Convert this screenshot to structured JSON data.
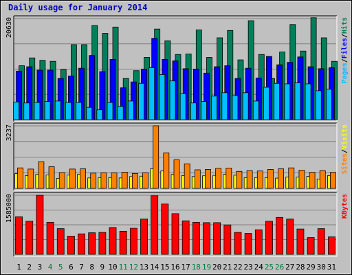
{
  "chart_data": {
    "type": "bar",
    "title": "Daily usage for January 2014",
    "categories": [
      "1",
      "2",
      "3",
      "4",
      "5",
      "6",
      "7",
      "8",
      "9",
      "10",
      "11",
      "12",
      "13",
      "14",
      "15",
      "16",
      "17",
      "18",
      "19",
      "20",
      "21",
      "22",
      "23",
      "24",
      "25",
      "26",
      "27",
      "28",
      "29",
      "30",
      "31"
    ],
    "weekend_days": [
      "4",
      "5",
      "11",
      "12",
      "18",
      "19",
      "25",
      "26"
    ],
    "colors": {
      "hits": "#00805a",
      "files": "#0000ff",
      "pages": "#00c0ff",
      "visits": "#ffff00",
      "sites": "#ff8000",
      "kbytes": "#ff0000",
      "weekday_label": "#000000",
      "weekend_label": "#008040",
      "title": "#0000c0",
      "plot_bg": "#c0c0c0"
    },
    "panels": [
      {
        "name": "usage",
        "ymax": 20630,
        "ymax_label": "20630",
        "legend": [
          {
            "label": "Pages",
            "color": "#00c0ff"
          },
          {
            "label": "Files",
            "color": "#0000ff"
          },
          {
            "label": "Hits",
            "color": "#00805a"
          }
        ],
        "series": [
          {
            "name": "Hits",
            "color": "#00805a",
            "values": [
              11000,
              12600,
              12100,
              11900,
              10200,
              15300,
              15300,
              19200,
              17600,
              18900,
              8400,
              10000,
              12700,
              18500,
              16100,
              13300,
              13400,
              18300,
              12700,
              16700,
              18200,
              12200,
              20200,
              13300,
              8400,
              13800,
              19400,
              14000,
              20800,
              16700,
              11900
            ]
          },
          {
            "name": "Files",
            "color": "#0000ff",
            "values": [
              9900,
              10800,
              10100,
              10100,
              8400,
              8900,
              10500,
              13100,
              9800,
              12300,
              6500,
              7700,
              10300,
              16600,
              12300,
              12000,
              10400,
              10300,
              9500,
              10800,
              11000,
              8400,
              10500,
              8500,
              12900,
              11200,
              11700,
              12800,
              10800,
              10400,
              10600
            ]
          },
          {
            "name": "Pages",
            "color": "#00c0ff",
            "values": [
              3600,
              3400,
              3500,
              3700,
              3800,
              3500,
              3500,
              2500,
              2000,
              3500,
              2700,
              3800,
              7400,
              10600,
              9200,
              7900,
              5300,
              3400,
              3700,
              4800,
              5500,
              4900,
              5500,
              3800,
              6600,
              7400,
              7300,
              7500,
              7300,
              5900,
              6200
            ]
          }
        ]
      },
      {
        "name": "visits",
        "ymax": 3237,
        "ymax_label": "3237",
        "legend": [
          {
            "label": "Sites",
            "color": "#ff8000"
          },
          {
            "label": "Visits",
            "color": "#ffff00"
          }
        ],
        "series": [
          {
            "name": "Visits",
            "color": "#ffff00",
            "values": [
              760,
              660,
              720,
              700,
              520,
              690,
              720,
              540,
              560,
              560,
              540,
              610,
              630,
              1010,
              900,
              720,
              660,
              610,
              650,
              670,
              720,
              680,
              560,
              560,
              560,
              530,
              590,
              590,
              620,
              480,
              660
            ]
          },
          {
            "name": "Sites",
            "color": "#ff8000",
            "values": [
              1060,
              1000,
              1380,
              1120,
              820,
              1000,
              1010,
              790,
              810,
              810,
              840,
              770,
              810,
              3237,
              1840,
              1480,
              1270,
              960,
              980,
              1040,
              1050,
              880,
              920,
              900,
              980,
              1010,
              1060,
              940,
              830,
              920,
              830
            ]
          }
        ]
      },
      {
        "name": "kbytes",
        "ymax": 1585000,
        "ymax_label": "1585000",
        "legend": [
          {
            "label": "KBytes",
            "color": "#ff0000"
          }
        ],
        "series": [
          {
            "name": "KBytes",
            "color": "#ff0000",
            "values": [
              1010000,
              890000,
              1585000,
              860000,
              690000,
              490000,
              550000,
              580000,
              590000,
              720000,
              620000,
              700000,
              950000,
              1570000,
              1350000,
              1090000,
              900000,
              860000,
              850000,
              850000,
              790000,
              590000,
              560000,
              660000,
              890000,
              990000,
              950000,
              680000,
              450000,
              690000,
              470000
            ]
          }
        ]
      }
    ]
  }
}
